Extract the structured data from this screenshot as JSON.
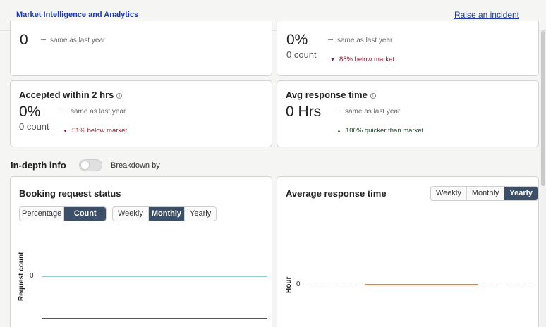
{
  "header": {
    "brand": "Market Intelligence and Analytics",
    "incident_link": "Raise an incident"
  },
  "top_cards": [
    {
      "value": "0",
      "same": "same as last year"
    },
    {
      "value": "0%",
      "count": "0 count",
      "same": "same as last year",
      "market": "88% below market",
      "market_dir": "down"
    }
  ],
  "accepted": {
    "title": "Accepted within 2 hrs",
    "value": "0%",
    "count": "0 count",
    "same": "same as last year",
    "market": "51% below market",
    "market_dir": "down",
    "icons": {
      "info": "info-icon",
      "arrow": "caret-down-icon"
    }
  },
  "avg_card": {
    "title": "Avg response time",
    "value": "0 Hrs",
    "same": "same as last year",
    "market": "100% quicker than market",
    "market_dir": "up",
    "icons": {
      "info": "info-icon",
      "arrow": "caret-up-icon"
    }
  },
  "indepth": {
    "title": "In-depth info",
    "breakdown_label": "Breakdown by",
    "toggle_on": false
  },
  "booking_chart": {
    "title": "Booking request status",
    "mode_options": [
      "Percentage",
      "Count"
    ],
    "mode_selected": "Count",
    "period_options": [
      "Weekly",
      "Monthly",
      "Yearly"
    ],
    "period_selected": "Monthly",
    "ylabel": "Request count",
    "tick": "0"
  },
  "response_chart": {
    "title": "Average response time",
    "period_options": [
      "Weekly",
      "Monthly",
      "Yearly"
    ],
    "period_selected": "Yearly",
    "ylabel": "Hour",
    "tick": "0"
  },
  "colors": {
    "brand": "#1d3aa8",
    "active": "#3b5068",
    "teal_line": "#8ad3d3",
    "orange_line": "#e8824a",
    "red": "#8b1a2d",
    "green": "#1a4a2a"
  },
  "chart_data": [
    {
      "type": "line",
      "title": "Booking request status",
      "ylabel": "Request count",
      "yticks": [
        "0"
      ],
      "series": [
        {
          "values": [
            0
          ]
        }
      ]
    },
    {
      "type": "line",
      "title": "Average response time",
      "ylabel": "Hour",
      "yticks": [
        "0"
      ],
      "series": [
        {
          "values": [
            0
          ]
        }
      ]
    }
  ]
}
